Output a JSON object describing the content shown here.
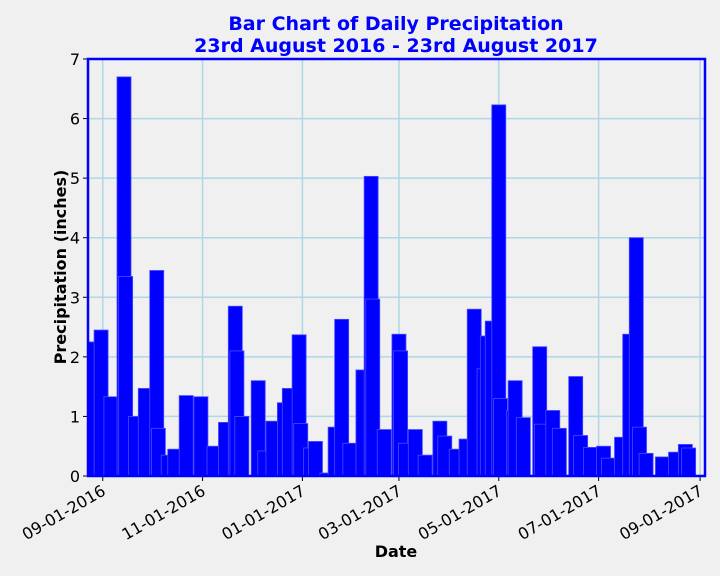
{
  "chart_data": {
    "type": "bar",
    "title": "Bar Chart of Daily Precipitation",
    "subtitle": "23rd August 2016 - 23rd August 2017",
    "x_label": "Date",
    "y_label": "Precipitation (inches)",
    "color": "#0000ff",
    "edge_color": "#4a4aff",
    "grid": true,
    "grid_color": "#add8e6",
    "xlim": [
      "2016-08-23",
      "2017-09-04"
    ],
    "xticks": [
      {
        "value": "2016-09-01",
        "label": "09-01-2016"
      },
      {
        "value": "2016-11-01",
        "label": "11-01-2016"
      },
      {
        "value": "2017-01-01",
        "label": "01-01-2017"
      },
      {
        "value": "2017-03-01",
        "label": "03-01-2017"
      },
      {
        "value": "2017-05-01",
        "label": "05-01-2017"
      },
      {
        "value": "2017-07-01",
        "label": "07-01-2017"
      },
      {
        "value": "2017-09-01",
        "label": "09-01-2017"
      }
    ],
    "ylim": [
      0,
      7
    ],
    "yticks": [
      0,
      1,
      2,
      3,
      4,
      5,
      6,
      7
    ],
    "x": [
      "2016-08-27",
      "2016-08-31",
      "2016-09-06",
      "2016-09-14",
      "2016-09-15",
      "2016-09-21",
      "2016-09-27",
      "2016-10-04",
      "2016-10-05",
      "2016-10-11",
      "2016-10-15",
      "2016-10-22",
      "2016-10-31",
      "2016-11-08",
      "2016-11-15",
      "2016-11-21",
      "2016-11-22",
      "2016-11-25",
      "2016-12-05",
      "2016-12-09",
      "2016-12-14",
      "2016-12-21",
      "2016-12-24",
      "2016-12-30",
      "2016-12-31",
      "2017-01-06",
      "2017-01-09",
      "2017-01-16",
      "2017-01-21",
      "2017-01-25",
      "2017-01-30",
      "2017-02-07",
      "2017-02-12",
      "2017-02-13",
      "2017-02-20",
      "2017-03-01",
      "2017-03-02",
      "2017-03-05",
      "2017-03-11",
      "2017-03-17",
      "2017-03-26",
      "2017-03-29",
      "2017-04-05",
      "2017-04-11",
      "2017-04-16",
      "2017-04-22",
      "2017-04-24",
      "2017-04-27",
      "2017-05-01",
      "2017-05-02",
      "2017-05-10",
      "2017-05-11",
      "2017-05-16",
      "2017-05-26",
      "2017-05-27",
      "2017-06-03",
      "2017-06-07",
      "2017-06-17",
      "2017-06-20",
      "2017-06-26",
      "2017-07-04",
      "2017-07-07",
      "2017-07-15",
      "2017-07-20",
      "2017-07-24",
      "2017-07-26",
      "2017-07-30",
      "2017-08-09",
      "2017-08-17",
      "2017-08-23",
      "2017-08-25"
    ],
    "values": [
      2.25,
      2.45,
      1.33,
      6.7,
      3.35,
      1.0,
      1.47,
      3.45,
      0.8,
      0.35,
      0.45,
      1.35,
      1.33,
      0.5,
      0.9,
      2.85,
      2.1,
      1.0,
      1.6,
      0.42,
      0.92,
      1.23,
      1.47,
      2.37,
      0.88,
      0.47,
      0.58,
      0.05,
      0.82,
      2.63,
      0.55,
      1.78,
      5.03,
      2.97,
      0.78,
      2.38,
      2.1,
      0.55,
      0.78,
      0.35,
      0.92,
      0.67,
      0.45,
      0.62,
      2.8,
      1.8,
      2.35,
      2.6,
      6.23,
      1.3,
      1.1,
      1.6,
      0.98,
      2.17,
      0.87,
      1.1,
      0.8,
      1.67,
      0.68,
      0.48,
      0.5,
      0.3,
      0.65,
      2.38,
      4.0,
      0.82,
      0.38,
      0.32,
      0.4,
      0.53,
      0.47
    ]
  }
}
